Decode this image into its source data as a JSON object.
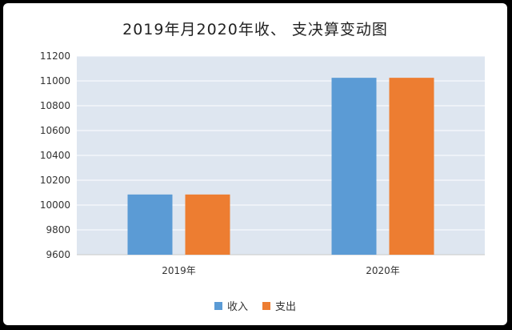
{
  "chart_data": {
    "type": "bar",
    "title": "2019年月2020年收、 支决算变动图",
    "categories": [
      "2019年",
      "2020年"
    ],
    "series": [
      {
        "name": "收入",
        "color": "#5B9BD5",
        "values": [
          10085,
          11025
        ]
      },
      {
        "name": "支出",
        "color": "#ED7D31",
        "values": [
          10085,
          11025
        ]
      }
    ],
    "ylim": [
      9600,
      11200
    ],
    "yticks": [
      9600,
      9800,
      10000,
      10200,
      10400,
      10600,
      10800,
      11000,
      11200
    ],
    "grid": true,
    "legend": "bottom",
    "plot_background": "#DEE6F0"
  }
}
